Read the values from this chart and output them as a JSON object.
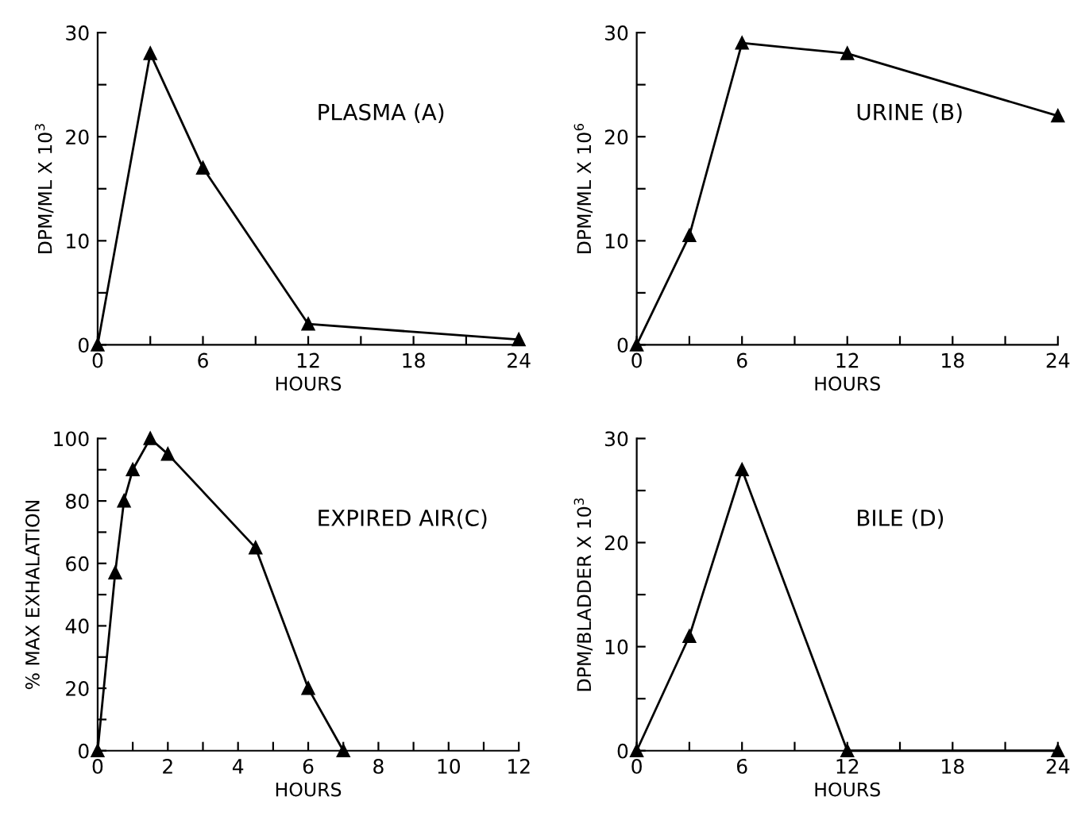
{
  "chart_data": [
    {
      "type": "line",
      "ylabel": "DPM/ML X 10$^{3}$",
      "xlabel": "HOURS",
      "annotations": [
        "PLASMA (A)"
      ],
      "marker": "triangle",
      "line_style": "solid",
      "grid": false,
      "legend": false,
      "x": [
        0,
        3,
        6,
        12,
        24
      ],
      "series": [
        {
          "color": "#000000",
          "values": [
            0,
            28,
            17,
            2,
            0.5
          ]
        }
      ],
      "xlim": [
        0,
        24
      ],
      "xticks": [
        0,
        {
          "value": 3,
          "label": null
        },
        6,
        {
          "value": 9,
          "label": null
        },
        12,
        {
          "value": 15,
          "label": null
        },
        18,
        {
          "value": 21,
          "label": null
        },
        24
      ],
      "ylim": [
        0,
        30
      ],
      "yticks": [
        0,
        {
          "value": 5,
          "label": null
        },
        10,
        {
          "value": 15,
          "label": null
        },
        20,
        {
          "value": 25,
          "label": null
        },
        30
      ]
    },
    {
      "type": "line",
      "ylabel": "DPM/ML X 10$^{6}$",
      "xlabel": "HOURS",
      "annotations": [
        "URINE (B)"
      ],
      "marker": "triangle",
      "line_style": "solid",
      "grid": false,
      "legend": false,
      "x": [
        0,
        3,
        6,
        12,
        24
      ],
      "series": [
        {
          "color": "#000000",
          "values": [
            0,
            10.5,
            29,
            28,
            22
          ]
        }
      ],
      "xlim": [
        0,
        24
      ],
      "xticks": [
        0,
        {
          "value": 3,
          "label": null
        },
        6,
        {
          "value": 9,
          "label": null
        },
        12,
        {
          "value": 15,
          "label": null
        },
        18,
        {
          "value": 21,
          "label": null
        },
        24
      ],
      "ylim": [
        0,
        30
      ],
      "yticks": [
        0,
        {
          "value": 5,
          "label": null
        },
        10,
        {
          "value": 15,
          "label": null
        },
        20,
        {
          "value": 25,
          "label": null
        },
        30
      ]
    },
    {
      "type": "line",
      "ylabel": "% MAX EXHALATION",
      "xlabel": "HOURS",
      "annotations": [
        "EXPIRED AIR(C)"
      ],
      "marker": "triangle",
      "line_style": "solid",
      "grid": false,
      "legend": false,
      "x": [
        0,
        0.5,
        0.75,
        1,
        1.5,
        2,
        4.5,
        6,
        7
      ],
      "series": [
        {
          "color": "#000000",
          "values": [
            0,
            57,
            80,
            90,
            100,
            95,
            65,
            20,
            0
          ]
        }
      ],
      "xlim": [
        0,
        12
      ],
      "xticks": [
        0,
        {
          "value": 1,
          "label": null
        },
        2,
        {
          "value": 3,
          "label": null
        },
        4,
        {
          "value": 5,
          "label": null
        },
        6,
        {
          "value": 7,
          "label": null
        },
        8,
        {
          "value": 9,
          "label": null
        },
        10,
        {
          "value": 11,
          "label": null
        },
        12
      ],
      "ylim": [
        0,
        100
      ],
      "yticks": [
        0,
        {
          "value": 10,
          "label": null
        },
        20,
        {
          "value": 30,
          "label": null
        },
        40,
        {
          "value": 50,
          "label": null
        },
        60,
        {
          "value": 70,
          "label": null
        },
        80,
        {
          "value": 90,
          "label": null
        },
        100
      ]
    },
    {
      "type": "line",
      "ylabel": "DPM/BLADDER X 10$^{3}$",
      "xlabel": "HOURS",
      "annotations": [
        "BILE (D)"
      ],
      "marker": "triangle",
      "line_style": "solid",
      "grid": false,
      "legend": false,
      "x": [
        0,
        3,
        6,
        12,
        24
      ],
      "series": [
        {
          "color": "#000000",
          "values": [
            0,
            11,
            27,
            0,
            0
          ]
        }
      ],
      "xlim": [
        0,
        24
      ],
      "xticks": [
        0,
        {
          "value": 3,
          "label": null
        },
        6,
        {
          "value": 9,
          "label": null
        },
        12,
        {
          "value": 15,
          "label": null
        },
        18,
        {
          "value": 21,
          "label": null
        },
        24
      ],
      "ylim": [
        0,
        30
      ],
      "yticks": [
        0,
        {
          "value": 5,
          "label": null
        },
        10,
        {
          "value": 15,
          "label": null
        },
        20,
        {
          "value": 25,
          "label": null
        },
        30
      ]
    }
  ]
}
